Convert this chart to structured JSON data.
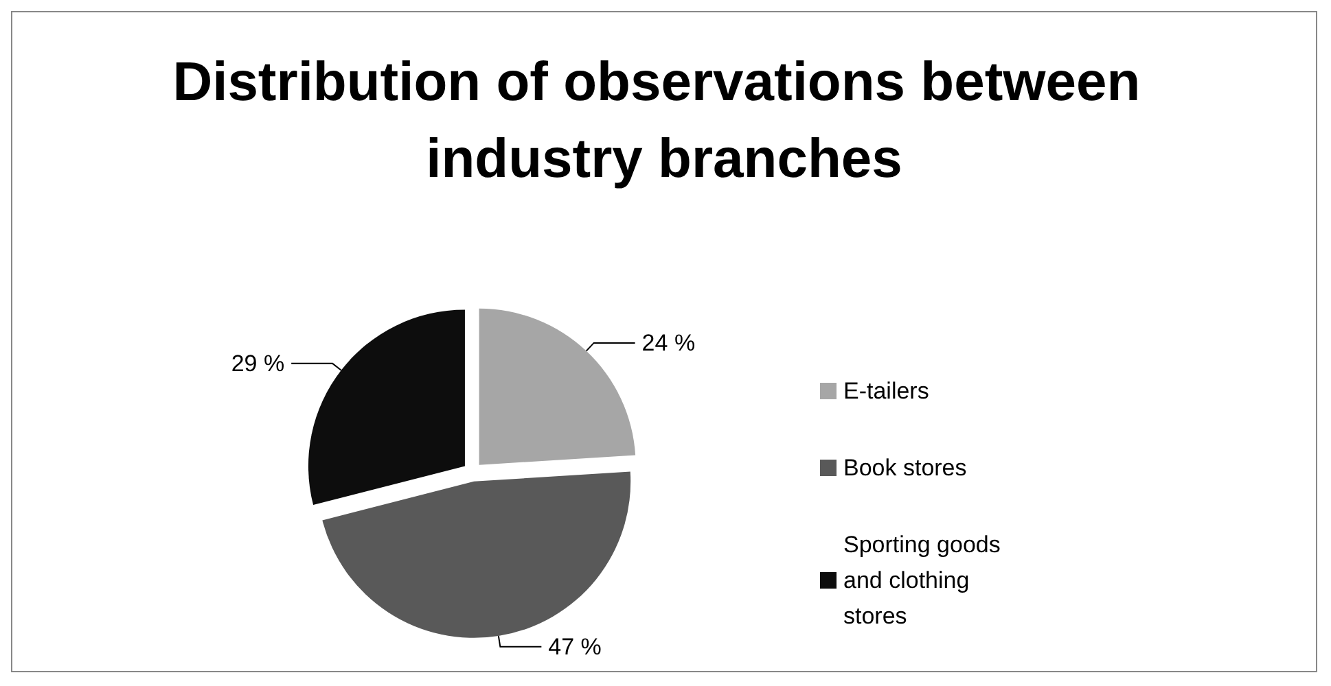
{
  "chart_data": {
    "type": "pie",
    "title": "Distribution of observations between industry branches",
    "categories": [
      "E-tailers",
      "Book stores",
      "Sporting goods and clothing stores"
    ],
    "values": [
      24,
      47,
      29
    ],
    "value_labels": [
      "24 %",
      "47 %",
      "29 %"
    ],
    "colors": [
      "#a6a6a6",
      "#595959",
      "#0d0d0d"
    ],
    "legend": "right"
  }
}
